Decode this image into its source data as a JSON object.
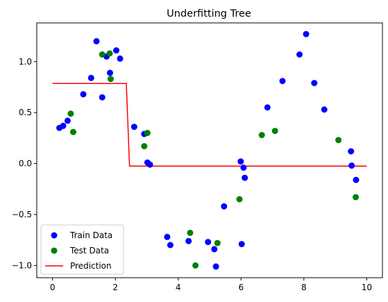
{
  "chart_data": {
    "type": "scatter",
    "title": "Underfitting Tree",
    "xlabel": "",
    "ylabel": "",
    "xlim": [
      -0.5,
      10.5
    ],
    "ylim": [
      -1.12,
      1.38
    ],
    "xticks": [
      0,
      2,
      4,
      6,
      8,
      10
    ],
    "yticks": [
      -1.0,
      -0.5,
      0.0,
      0.5,
      1.0
    ],
    "xtick_labels": [
      "0",
      "2",
      "4",
      "6",
      "8",
      "10"
    ],
    "ytick_labels": [
      "−1.0",
      "−0.5",
      "0.0",
      "0.5",
      "1.0"
    ],
    "grid": false,
    "legend_position": "lower-left",
    "series": [
      {
        "name": "Train Data",
        "kind": "scatter",
        "color": "#0000ff",
        "points": [
          [
            0.22,
            0.35
          ],
          [
            0.34,
            0.37
          ],
          [
            0.48,
            0.42
          ],
          [
            0.98,
            0.68
          ],
          [
            1.23,
            0.84
          ],
          [
            1.4,
            1.2
          ],
          [
            1.58,
            0.65
          ],
          [
            1.72,
            1.05
          ],
          [
            1.83,
            0.89
          ],
          [
            2.03,
            1.11
          ],
          [
            2.15,
            1.03
          ],
          [
            2.6,
            0.36
          ],
          [
            2.92,
            0.29
          ],
          [
            3.02,
            0.01
          ],
          [
            3.1,
            -0.01
          ],
          [
            3.65,
            -0.72
          ],
          [
            3.75,
            -0.8
          ],
          [
            4.33,
            -0.76
          ],
          [
            4.95,
            -0.77
          ],
          [
            5.15,
            -0.84
          ],
          [
            5.2,
            -1.01
          ],
          [
            5.46,
            -0.42
          ],
          [
            5.99,
            0.02
          ],
          [
            6.02,
            -0.79
          ],
          [
            6.08,
            -0.04
          ],
          [
            6.12,
            -0.14
          ],
          [
            6.84,
            0.55
          ],
          [
            7.32,
            0.81
          ],
          [
            7.86,
            1.07
          ],
          [
            8.07,
            1.27
          ],
          [
            8.33,
            0.79
          ],
          [
            8.65,
            0.53
          ],
          [
            9.5,
            0.12
          ],
          [
            9.52,
            -0.02
          ],
          [
            9.66,
            -0.16
          ]
        ]
      },
      {
        "name": "Test Data",
        "kind": "scatter",
        "color": "#008000",
        "points": [
          [
            0.58,
            0.49
          ],
          [
            0.66,
            0.31
          ],
          [
            1.58,
            1.07
          ],
          [
            1.82,
            1.08
          ],
          [
            1.85,
            0.83
          ],
          [
            2.92,
            0.17
          ],
          [
            3.02,
            0.3
          ],
          [
            4.38,
            -0.68
          ],
          [
            4.55,
            -1.0
          ],
          [
            5.25,
            -0.78
          ],
          [
            5.95,
            -0.35
          ],
          [
            6.66,
            0.28
          ],
          [
            7.08,
            0.32
          ],
          [
            9.1,
            0.23
          ],
          [
            9.65,
            -0.33
          ]
        ]
      },
      {
        "name": "Prediction",
        "kind": "line",
        "color": "#ff0000",
        "points": [
          [
            0.0,
            0.785
          ],
          [
            2.35,
            0.785
          ],
          [
            2.45,
            -0.025
          ],
          [
            10.0,
            -0.025
          ]
        ]
      }
    ]
  }
}
